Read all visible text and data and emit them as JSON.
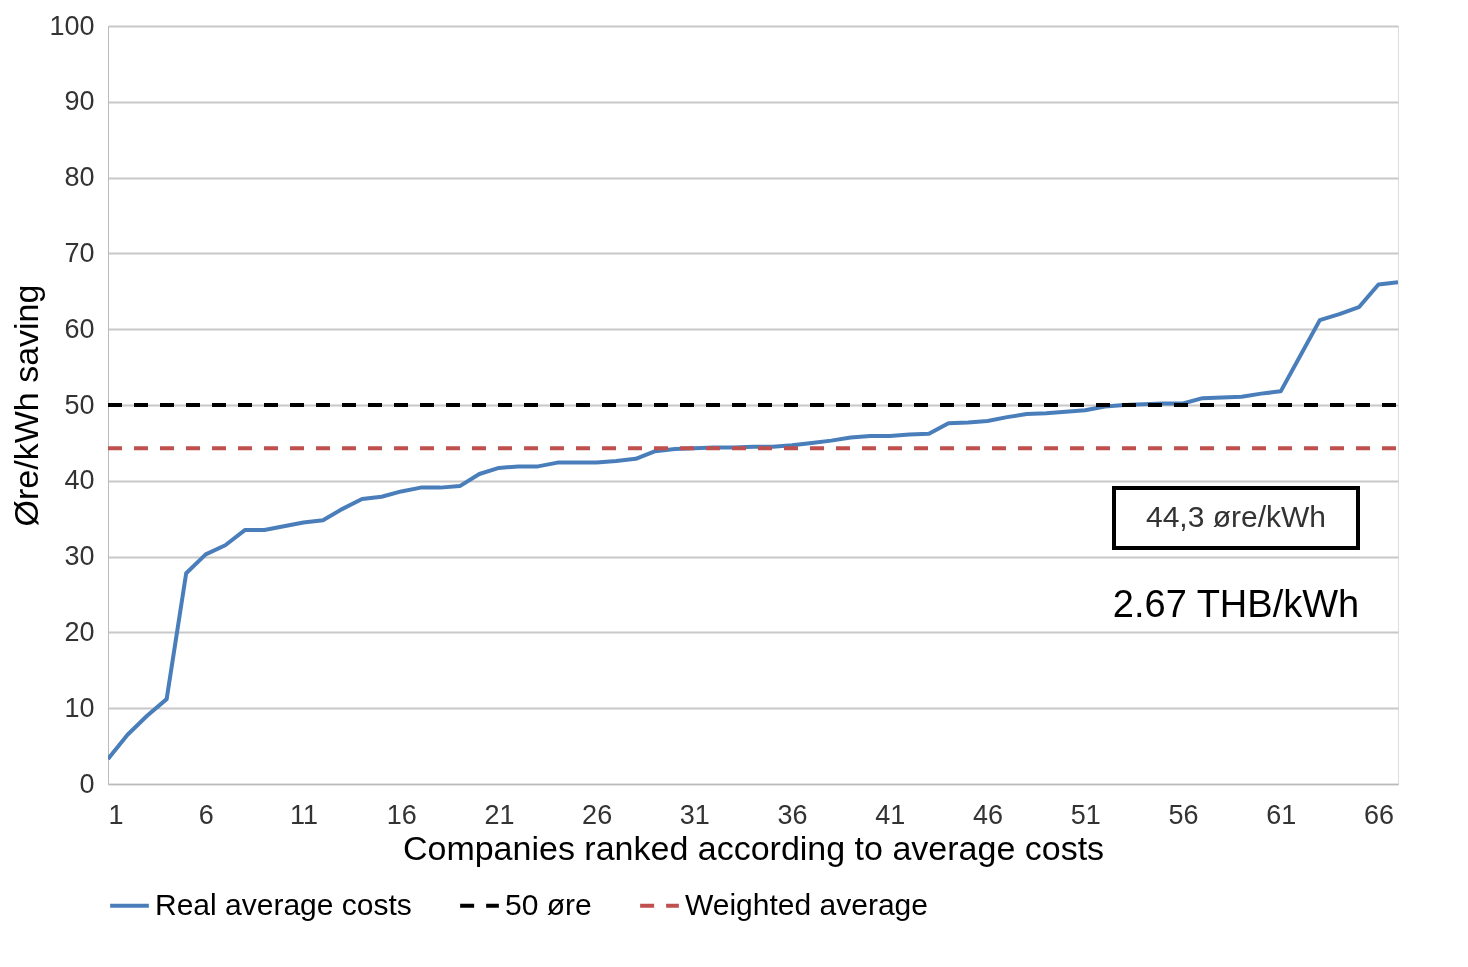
{
  "chart_data": {
    "type": "line",
    "xlabel": "Companies ranked according to average costs",
    "ylabel": "Øre/kWh saving",
    "x": [
      1,
      2,
      3,
      4,
      5,
      6,
      7,
      8,
      9,
      10,
      11,
      12,
      13,
      14,
      15,
      16,
      17,
      18,
      19,
      20,
      21,
      22,
      23,
      24,
      25,
      26,
      27,
      28,
      29,
      30,
      31,
      32,
      33,
      34,
      35,
      36,
      37,
      38,
      39,
      40,
      41,
      42,
      43,
      44,
      45,
      46,
      47,
      48,
      49,
      50,
      51,
      52,
      53,
      54,
      55,
      56,
      57,
      58,
      59,
      60,
      61,
      62,
      63,
      64,
      65,
      66,
      67
    ],
    "series": [
      {
        "name": "Real average costs",
        "color": "#4a7ebb",
        "values": [
          3.3,
          6.5,
          9,
          11.2,
          27.8,
          30.3,
          31.5,
          33.5,
          33.5,
          34,
          34.5,
          34.8,
          36.3,
          37.6,
          37.9,
          38.6,
          39.1,
          39.1,
          39.3,
          40.9,
          41.7,
          41.9,
          41.9,
          42.4,
          42.4,
          42.4,
          42.6,
          42.9,
          43.9,
          44.2,
          44.3,
          44.4,
          44.4,
          44.5,
          44.5,
          44.7,
          45,
          45.3,
          45.7,
          45.9,
          45.9,
          46.1,
          46.2,
          47.6,
          47.7,
          47.9,
          48.4,
          48.8,
          48.9,
          49.1,
          49.3,
          49.8,
          50,
          50.1,
          50.2,
          50.2,
          50.9,
          51,
          51.1,
          51.5,
          51.8,
          56.5,
          61.2,
          62,
          62.9,
          65.9,
          66.2
        ]
      }
    ],
    "ref_lines": [
      {
        "axis": "y",
        "value": 50,
        "label": "50 øre",
        "color": "#000000",
        "line_style": "dashed"
      },
      {
        "axis": "y",
        "value": 44.3,
        "label": "Weighted average",
        "color": "#c0504d",
        "line_style": "dashed"
      }
    ],
    "annotations": [
      "44,3 øre/kWh",
      "2.67 THB/kWh"
    ],
    "xlim": [
      1,
      67
    ],
    "xticks": [
      1,
      6,
      11,
      16,
      21,
      26,
      31,
      36,
      41,
      46,
      51,
      56,
      61,
      66
    ],
    "ylim": [
      0,
      100
    ],
    "yticks": [
      0,
      10,
      20,
      30,
      40,
      50,
      60,
      70,
      80,
      90,
      100
    ],
    "grid": "y",
    "legend": "bottom",
    "marker": "none",
    "line_style": "solid"
  }
}
